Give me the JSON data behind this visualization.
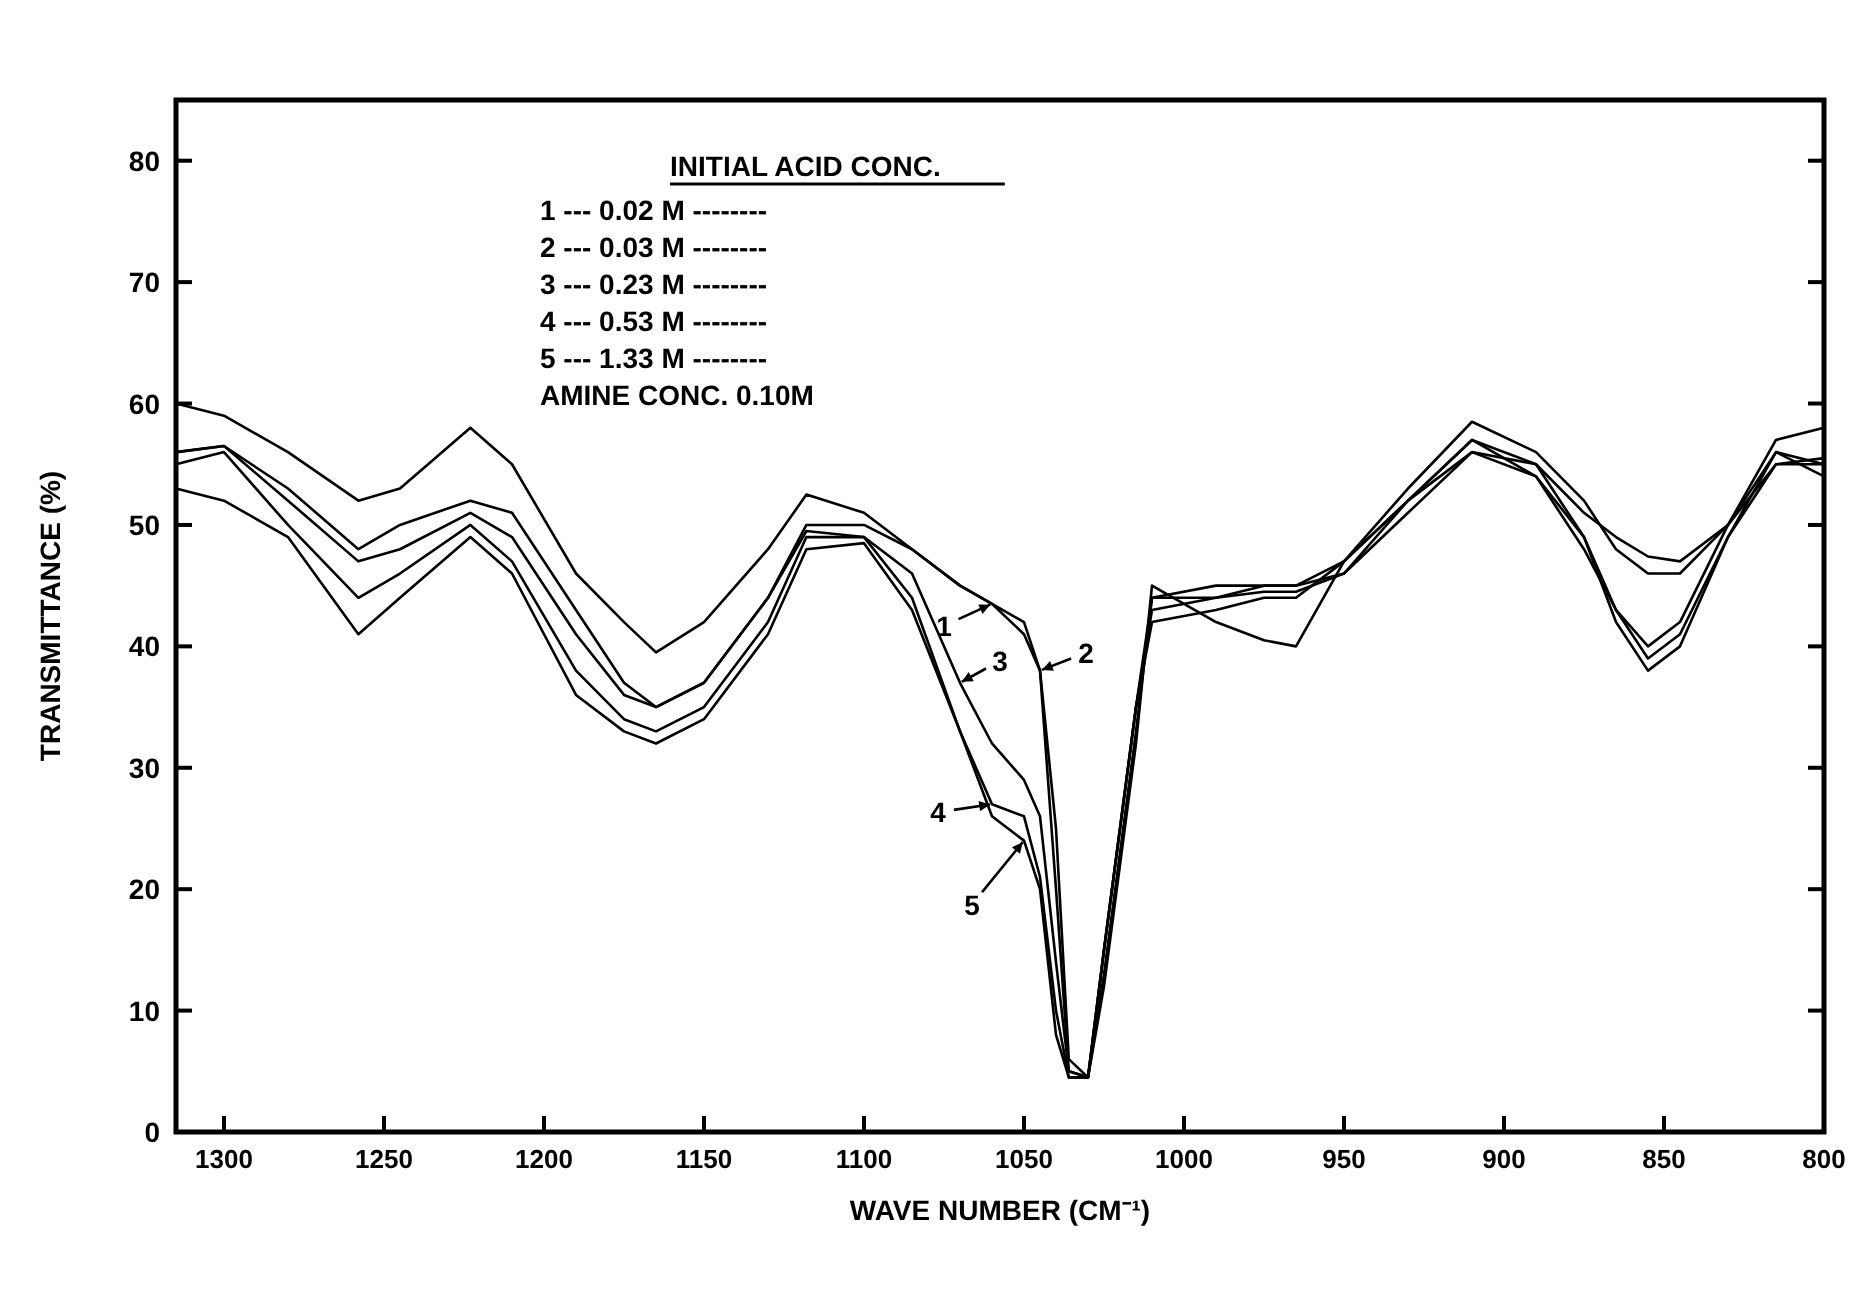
{
  "chart_data": {
    "type": "line",
    "xlabel": "WAVE NUMBER (CM⁻¹)",
    "ylabel": "TRANSMITTANCE (%)",
    "legend_title": "INITIAL ACID CONC.",
    "legend": "center",
    "x": [
      1315,
      1300,
      1280,
      1258,
      1245,
      1223,
      1210,
      1190,
      1175,
      1165,
      1150,
      1130,
      1118,
      1100,
      1085,
      1070,
      1060,
      1050,
      1045,
      1040,
      1036,
      1030,
      1025,
      1015,
      1010,
      990,
      975,
      965,
      950,
      930,
      910,
      890,
      875,
      865,
      855,
      845,
      830,
      815,
      800
    ],
    "xlim": [
      1315,
      800
    ],
    "xticks": [
      1300,
      1250,
      1200,
      1150,
      1100,
      1050,
      1000,
      950,
      900,
      850,
      800
    ],
    "ylim": [
      0,
      85
    ],
    "yticks": [
      0,
      10,
      20,
      30,
      40,
      50,
      60,
      70,
      80
    ],
    "series": [
      {
        "name": "1",
        "color": "#000000",
        "values": [
          56,
          56.5,
          53,
          48,
          50,
          52,
          51,
          43,
          37,
          35,
          37,
          44,
          50,
          50,
          48,
          45,
          43.5,
          42,
          38,
          20,
          5,
          4.5,
          15,
          35,
          43,
          44,
          44.5,
          44.5,
          46,
          52,
          56,
          55,
          51,
          49,
          47.4,
          47,
          50,
          56,
          55
        ]
      },
      {
        "name": "2",
        "color": "#000000",
        "values": [
          60,
          59,
          56,
          52,
          53,
          58,
          55,
          46,
          42,
          39.5,
          42,
          48,
          52.5,
          51,
          48,
          45,
          43.5,
          41,
          38,
          25,
          6,
          4.5,
          15,
          35,
          44,
          45,
          45,
          45,
          47,
          53,
          58.5,
          56,
          52,
          48,
          46,
          46,
          50,
          57,
          58
        ]
      },
      {
        "name": "3",
        "color": "#000000",
        "values": [
          56,
          56.5,
          52,
          47,
          48,
          51,
          49,
          41,
          36,
          35,
          37,
          44,
          49.5,
          49,
          46,
          37,
          32,
          29,
          26,
          14,
          5,
          4.5,
          15,
          35,
          42,
          43,
          44,
          44,
          47,
          52,
          57,
          54,
          49,
          43,
          40,
          42,
          50,
          55,
          55.5
        ]
      },
      {
        "name": "4",
        "color": "#000000",
        "values": [
          55,
          56,
          50,
          44,
          46,
          50,
          47,
          38,
          34,
          33,
          35,
          42,
          49,
          49,
          44,
          33,
          27,
          26,
          21,
          10,
          4.5,
          4.5,
          13,
          33,
          44,
          44,
          45,
          45,
          46,
          51,
          56,
          54,
          48,
          43,
          39,
          41,
          49,
          55,
          55
        ]
      },
      {
        "name": "5",
        "color": "#000000",
        "values": [
          53,
          52,
          49,
          41,
          44,
          49,
          46,
          36,
          33,
          32,
          34,
          41,
          48,
          48.5,
          43,
          33,
          26,
          24,
          20,
          8,
          4.5,
          4.5,
          12,
          32,
          45,
          42,
          40.5,
          40,
          47,
          52,
          57,
          55,
          49,
          42,
          38,
          40,
          49,
          56,
          54
        ]
      }
    ],
    "annotations": [
      "1 --- 0.02 M --------",
      "2 --- 0.03 M --------",
      "3 --- 0.23 M --------",
      "4 --- 0.53 M --------",
      "5 --- 1.33 M --------",
      "AMINE CONC. 0.10M"
    ]
  }
}
